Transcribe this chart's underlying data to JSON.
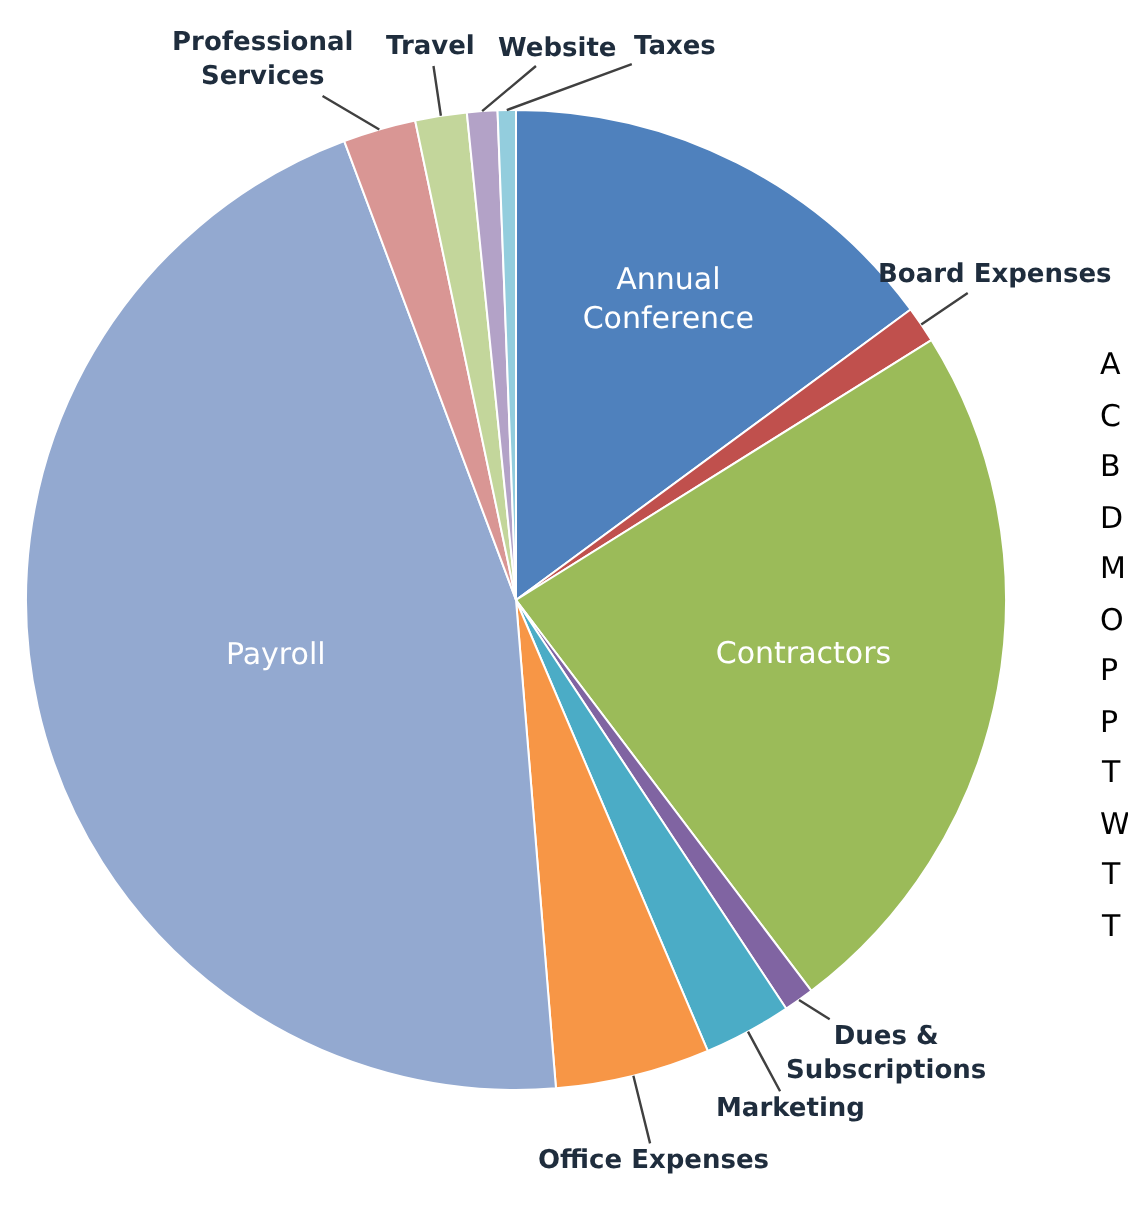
{
  "chart_data": {
    "type": "pie",
    "categories": [
      "Annual Conference",
      "Board Expenses",
      "Contractors",
      "Dues & Subscriptions",
      "Marketing",
      "Office Expenses",
      "Payroll",
      "Professional Services",
      "Travel",
      "Website",
      "Taxes"
    ],
    "values": [
      14.9,
      1.2,
      23.6,
      1.0,
      2.9,
      5.1,
      45.6,
      2.4,
      1.7,
      1.0,
      0.6
    ],
    "colors": [
      "#4f81bd",
      "#c0504d",
      "#9bbb59",
      "#8064a2",
      "#4bacc6",
      "#f79646",
      "#93a9d0",
      "#d99694",
      "#c3d69b",
      "#b3a2c7",
      "#93cddd"
    ],
    "legend": false,
    "annotations": [
      "A",
      "C",
      "B",
      "D",
      "M",
      "O",
      "P",
      "P",
      "T",
      "W",
      "T",
      "T"
    ]
  }
}
